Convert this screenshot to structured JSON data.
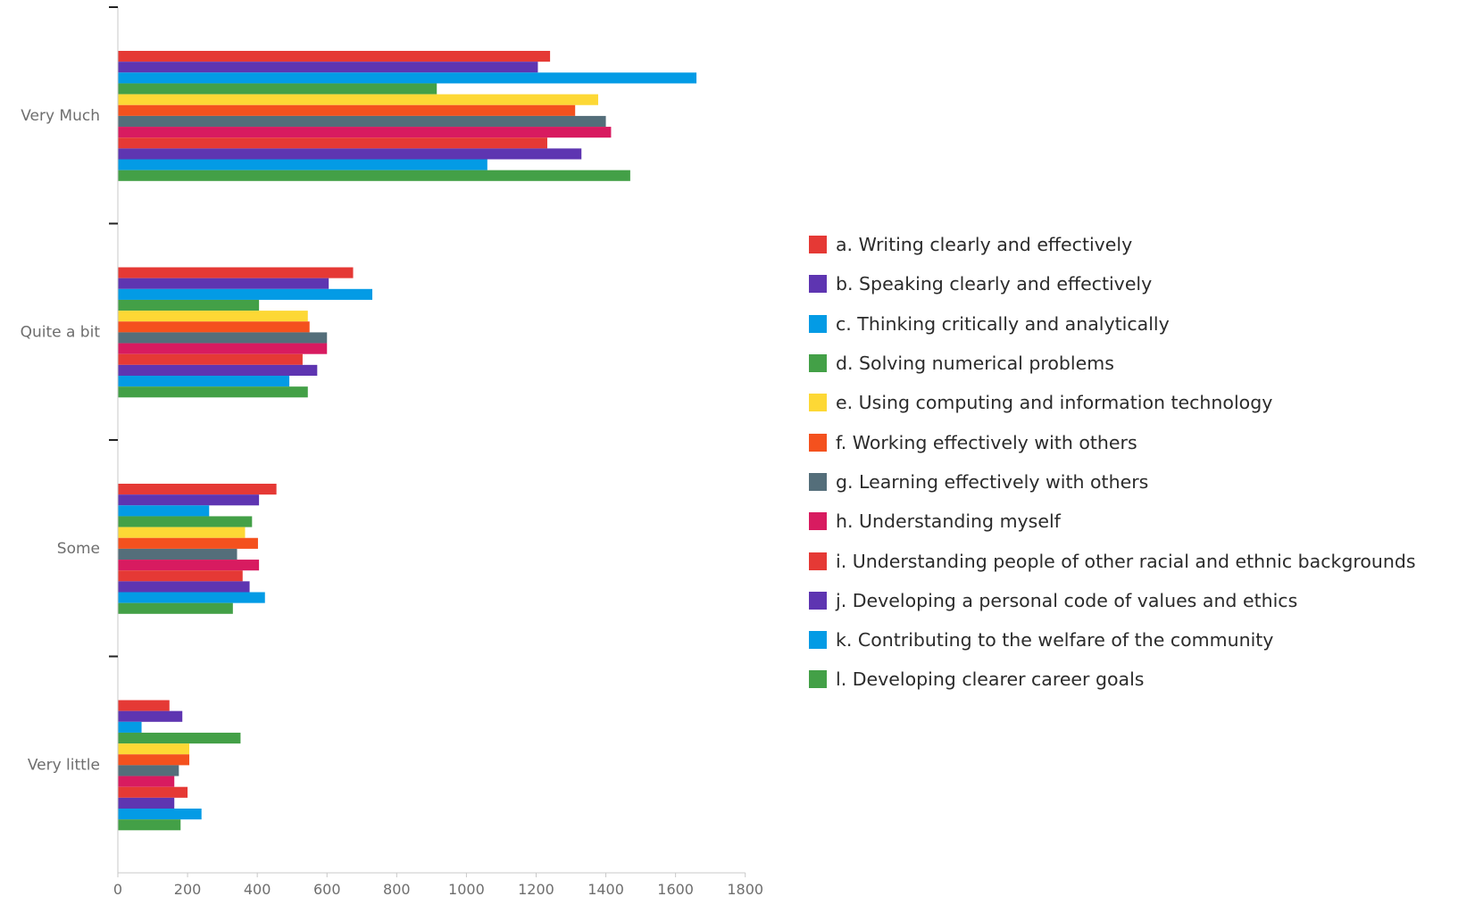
{
  "chart_data": {
    "type": "bar",
    "orientation": "horizontal",
    "title": "",
    "xlabel": "",
    "ylabel": "",
    "categories": [
      "Very Much",
      "Quite a bit",
      "Some",
      "Very little"
    ],
    "x_ticks": [
      "0",
      "200",
      "400",
      "600",
      "800",
      "1000",
      "1200",
      "1400",
      "1600",
      "1800"
    ],
    "xlim": [
      0,
      1800
    ],
    "grid": false,
    "legend_position": "right",
    "series": [
      {
        "name": "a. Writing clearly and effectively",
        "color": "#E53935",
        "values": [
          1240,
          675,
          455,
          148
        ]
      },
      {
        "name": "b. Speaking clearly and effectively",
        "color": "#5E35B1",
        "values": [
          1205,
          605,
          405,
          185
        ]
      },
      {
        "name": "c. Thinking critically and analytically",
        "color": "#039BE5",
        "values": [
          1660,
          730,
          262,
          68
        ]
      },
      {
        "name": "d. Solving numerical problems",
        "color": "#43A047",
        "values": [
          915,
          405,
          385,
          352
        ]
      },
      {
        "name": "e. Using computing and information technology",
        "color": "#FDD835",
        "values": [
          1378,
          545,
          365,
          205
        ]
      },
      {
        "name": "f. Working effectively with others",
        "color": "#F4511E",
        "values": [
          1312,
          550,
          402,
          205
        ]
      },
      {
        "name": "g. Learning effectively with others",
        "color": "#546E7A",
        "values": [
          1400,
          600,
          342,
          175
        ]
      },
      {
        "name": "h. Understanding myself",
        "color": "#D81B60",
        "values": [
          1415,
          600,
          405,
          162
        ]
      },
      {
        "name": "i. Understanding people of other racial and ethnic backgrounds",
        "color": "#E53935",
        "values": [
          1232,
          530,
          358,
          200
        ]
      },
      {
        "name": "j. Developing a personal code of values and ethics",
        "color": "#5E35B1",
        "values": [
          1330,
          572,
          378,
          162
        ]
      },
      {
        "name": "k. Contributing to the welfare of the community",
        "color": "#039BE5",
        "values": [
          1060,
          492,
          422,
          240
        ]
      },
      {
        "name": "l. Developing clearer career goals",
        "color": "#43A047",
        "values": [
          1470,
          545,
          330,
          180
        ]
      }
    ]
  }
}
